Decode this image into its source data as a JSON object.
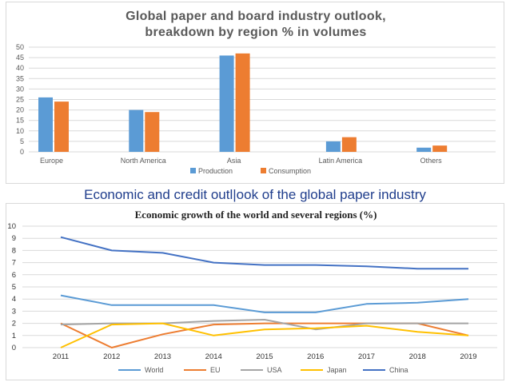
{
  "chart_data": [
    {
      "type": "bar",
      "title_lines": [
        "Global paper and board industry outlook,",
        "breakdown by region % in volumes"
      ],
      "categories": [
        "Europe",
        "North America",
        "Asia",
        "Latin America",
        "Others"
      ],
      "series": [
        {
          "name": "Production",
          "values": [
            26,
            20,
            46,
            5,
            2
          ],
          "color": "#5b9bd5"
        },
        {
          "name": "Consumption",
          "values": [
            24,
            19,
            47,
            7,
            3
          ],
          "color": "#ed7d31"
        }
      ],
      "ylim": [
        0,
        50
      ],
      "yticks": [
        0,
        5,
        10,
        15,
        20,
        25,
        30,
        35,
        40,
        45,
        50
      ],
      "grid": true,
      "legend": "bottom"
    },
    {
      "type": "line",
      "title": "Economic growth of the world and several regions (%)",
      "x": [
        "2011",
        "2012",
        "2013",
        "2014",
        "2015",
        "2016",
        "2017",
        "2018",
        "2019"
      ],
      "series": [
        {
          "name": "World",
          "values": [
            4.3,
            3.5,
            3.5,
            3.5,
            2.9,
            2.9,
            3.6,
            3.7,
            4.0
          ],
          "color": "#5b9bd5"
        },
        {
          "name": "EU",
          "values": [
            2.0,
            0.0,
            1.1,
            1.9,
            2.0,
            2.0,
            2.0,
            2.0,
            1.0
          ],
          "color": "#ed7d31"
        },
        {
          "name": "USA",
          "values": [
            1.9,
            2.0,
            2.0,
            2.2,
            2.3,
            1.5,
            2.0,
            2.0,
            2.0
          ],
          "color": "#a5a5a5"
        },
        {
          "name": "Japan",
          "values": [
            0.0,
            1.9,
            2.0,
            1.0,
            1.5,
            1.6,
            1.8,
            1.3,
            1.0
          ],
          "color": "#ffc000"
        },
        {
          "name": "China",
          "values": [
            9.1,
            8.0,
            7.8,
            7.0,
            6.8,
            6.8,
            6.7,
            6.5,
            6.5
          ],
          "color": "#4472c4"
        }
      ],
      "ylim": [
        0,
        10
      ],
      "yticks": [
        0,
        1,
        2,
        3,
        4,
        5,
        6,
        7,
        8,
        9,
        10
      ],
      "grid": true,
      "legend": "bottom"
    }
  ],
  "section_heading": "Economic and credit outl|ook of the global paper industry"
}
